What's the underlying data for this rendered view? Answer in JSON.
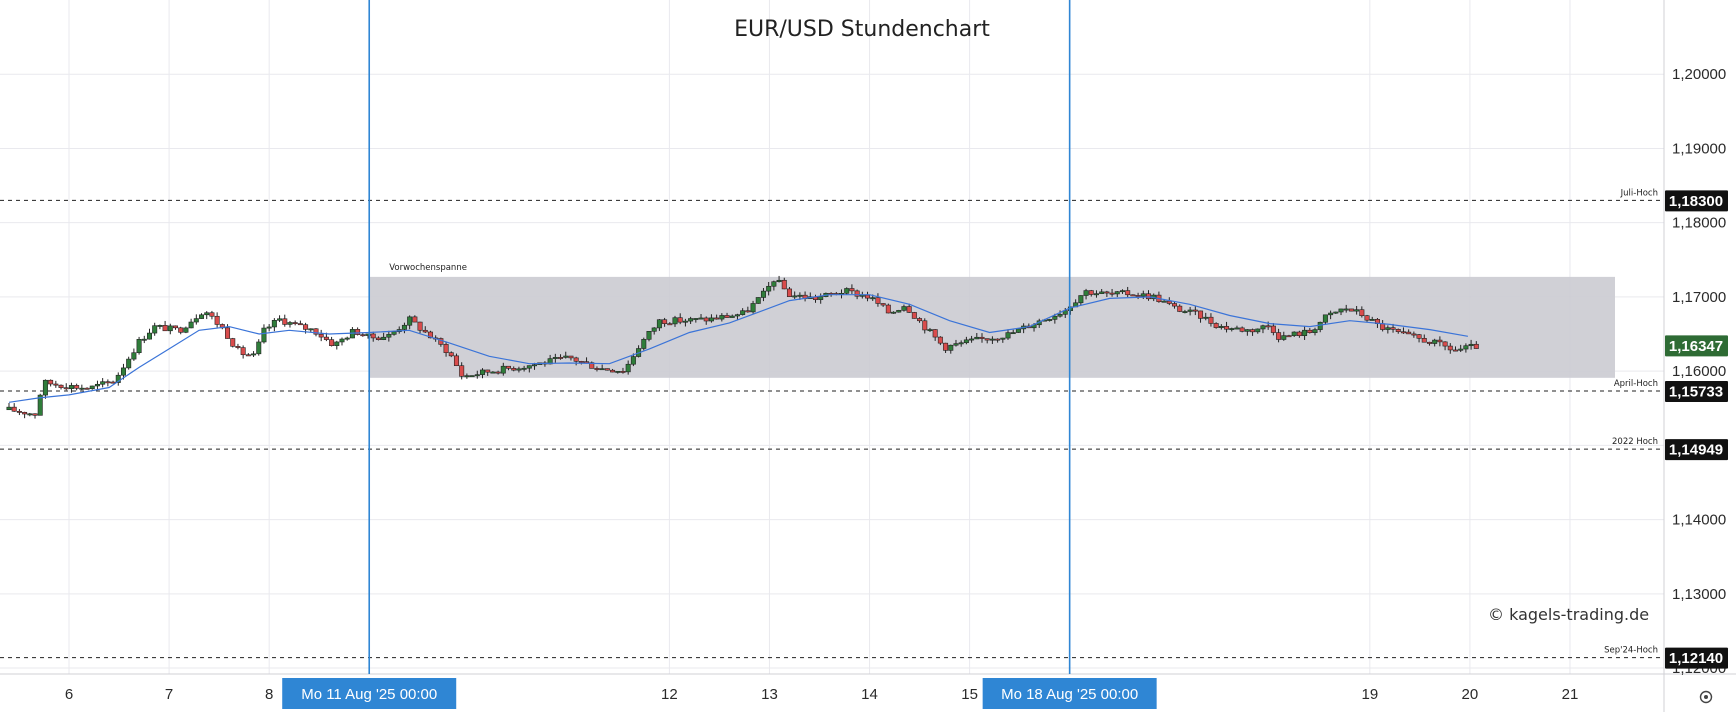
{
  "chart_data": {
    "type": "candlestick",
    "title": "EUR/USD Stundenchart",
    "instrument": "EUR/USD",
    "timeframe": "1h",
    "ylim": [
      1.1192,
      1.21
    ],
    "xlim": [
      5.4,
      21.7
    ],
    "y_ticks": [
      {
        "value": 1.2,
        "label": "1,20000"
      },
      {
        "value": 1.19,
        "label": "1,19000"
      },
      {
        "value": 1.18,
        "label": "1,18000"
      },
      {
        "value": 1.17,
        "label": "1,17000"
      },
      {
        "value": 1.16,
        "label": "1,16000"
      },
      {
        "value": 1.15,
        "label": "1,15000"
      },
      {
        "value": 1.14,
        "label": "1,14000"
      },
      {
        "value": 1.13,
        "label": "1,13000"
      },
      {
        "value": 1.12,
        "label": "1,12000"
      }
    ],
    "x_ticks": [
      {
        "value": 6,
        "label": "6"
      },
      {
        "value": 7,
        "label": "7"
      },
      {
        "value": 8,
        "label": "8"
      },
      {
        "value": 12,
        "label": "12"
      },
      {
        "value": 13,
        "label": "13"
      },
      {
        "value": 14,
        "label": "14"
      },
      {
        "value": 15,
        "label": "15"
      },
      {
        "value": 19,
        "label": "19"
      },
      {
        "value": 20,
        "label": "20"
      },
      {
        "value": 21,
        "label": "21"
      }
    ],
    "x_grid": [
      6,
      7,
      8,
      9,
      12,
      13,
      14,
      15,
      16,
      19,
      20,
      21
    ],
    "x_markers": [
      {
        "value": 9,
        "label": "Mo 11 Aug '25   00:00"
      },
      {
        "value": 16,
        "label": "Mo 18 Aug '25   00:00"
      }
    ],
    "range_box": {
      "label": "Vorwochenspanne",
      "x_from": 9,
      "x_to": 21.45,
      "y_low": 1.1591,
      "y_high": 1.1727
    },
    "levels": [
      {
        "value": 1.183,
        "price": "1,18300",
        "name": "Juli-Hoch"
      },
      {
        "value": 1.15733,
        "price": "1,15733",
        "name": "April-Hoch"
      },
      {
        "value": 1.14949,
        "price": "1,14949",
        "name": "2022 Hoch"
      },
      {
        "value": 1.1214,
        "price": "1,12140",
        "name": "Sep'24-Hoch"
      }
    ],
    "last_price": {
      "value": 1.16347,
      "label": "1,16347"
    },
    "candle_path": [
      {
        "x": 5.4,
        "y": 1.1548
      },
      {
        "x": 5.68,
        "y": 1.1542
      },
      {
        "x": 5.73,
        "y": 1.1585
      },
      {
        "x": 6.0,
        "y": 1.158
      },
      {
        "x": 6.2,
        "y": 1.1577
      },
      {
        "x": 6.45,
        "y": 1.1587
      },
      {
        "x": 6.7,
        "y": 1.164
      },
      {
        "x": 6.85,
        "y": 1.166
      },
      {
        "x": 7.1,
        "y": 1.1655
      },
      {
        "x": 7.35,
        "y": 1.1683
      },
      {
        "x": 7.55,
        "y": 1.1655
      },
      {
        "x": 7.7,
        "y": 1.1625
      },
      {
        "x": 7.85,
        "y": 1.162
      },
      {
        "x": 7.95,
        "y": 1.1655
      },
      {
        "x": 8.1,
        "y": 1.167
      },
      {
        "x": 8.3,
        "y": 1.166
      },
      {
        "x": 8.45,
        "y": 1.1655
      },
      {
        "x": 8.65,
        "y": 1.1635
      },
      {
        "x": 8.85,
        "y": 1.1655
      },
      {
        "x": 9.0,
        "y": 1.1645
      },
      {
        "x": 9.2,
        "y": 1.1648
      },
      {
        "x": 9.4,
        "y": 1.167
      },
      {
        "x": 9.6,
        "y": 1.1648
      },
      {
        "x": 9.8,
        "y": 1.1625
      },
      {
        "x": 9.93,
        "y": 1.1593
      },
      {
        "x": 10.2,
        "y": 1.16
      },
      {
        "x": 10.6,
        "y": 1.1608
      },
      {
        "x": 11.0,
        "y": 1.1618
      },
      {
        "x": 11.3,
        "y": 1.1604
      },
      {
        "x": 11.55,
        "y": 1.1601
      },
      {
        "x": 11.7,
        "y": 1.1635
      },
      {
        "x": 11.9,
        "y": 1.1668
      },
      {
        "x": 12.1,
        "y": 1.1668
      },
      {
        "x": 12.4,
        "y": 1.167
      },
      {
        "x": 12.75,
        "y": 1.1678
      },
      {
        "x": 12.95,
        "y": 1.1705
      },
      {
        "x": 13.05,
        "y": 1.1725
      },
      {
        "x": 13.2,
        "y": 1.1703
      },
      {
        "x": 13.45,
        "y": 1.1698
      },
      {
        "x": 13.75,
        "y": 1.1708
      },
      {
        "x": 14.0,
        "y": 1.17
      },
      {
        "x": 14.2,
        "y": 1.1678
      },
      {
        "x": 14.35,
        "y": 1.169
      },
      {
        "x": 14.55,
        "y": 1.166
      },
      {
        "x": 14.75,
        "y": 1.1632
      },
      {
        "x": 15.0,
        "y": 1.164
      },
      {
        "x": 15.4,
        "y": 1.165
      },
      {
        "x": 15.7,
        "y": 1.1668
      },
      {
        "x": 15.95,
        "y": 1.1682
      },
      {
        "x": 16.15,
        "y": 1.1708
      },
      {
        "x": 16.4,
        "y": 1.1703
      },
      {
        "x": 16.6,
        "y": 1.1705
      },
      {
        "x": 16.85,
        "y": 1.17
      },
      {
        "x": 17.05,
        "y": 1.1685
      },
      {
        "x": 17.3,
        "y": 1.1675
      },
      {
        "x": 17.5,
        "y": 1.166
      },
      {
        "x": 17.8,
        "y": 1.1655
      },
      {
        "x": 18.0,
        "y": 1.1662
      },
      {
        "x": 18.1,
        "y": 1.1645
      },
      {
        "x": 18.25,
        "y": 1.165
      },
      {
        "x": 18.4,
        "y": 1.1653
      },
      {
        "x": 18.55,
        "y": 1.1672
      },
      {
        "x": 18.75,
        "y": 1.1685
      },
      {
        "x": 18.9,
        "y": 1.1678
      },
      {
        "x": 19.1,
        "y": 1.166
      },
      {
        "x": 19.35,
        "y": 1.1648
      },
      {
        "x": 19.6,
        "y": 1.164
      },
      {
        "x": 19.85,
        "y": 1.1628
      },
      {
        "x": 20.1,
        "y": 1.1634
      }
    ],
    "moving_average": [
      {
        "x": 5.4,
        "y": 1.1558
      },
      {
        "x": 5.7,
        "y": 1.1564
      },
      {
        "x": 6.0,
        "y": 1.1568
      },
      {
        "x": 6.4,
        "y": 1.1578
      },
      {
        "x": 6.7,
        "y": 1.1605
      },
      {
        "x": 7.0,
        "y": 1.163
      },
      {
        "x": 7.3,
        "y": 1.1655
      },
      {
        "x": 7.6,
        "y": 1.166
      },
      {
        "x": 7.9,
        "y": 1.165
      },
      {
        "x": 8.2,
        "y": 1.1655
      },
      {
        "x": 8.6,
        "y": 1.165
      },
      {
        "x": 9.0,
        "y": 1.1652
      },
      {
        "x": 9.4,
        "y": 1.1655
      },
      {
        "x": 9.8,
        "y": 1.1638
      },
      {
        "x": 10.2,
        "y": 1.162
      },
      {
        "x": 10.6,
        "y": 1.161
      },
      {
        "x": 11.0,
        "y": 1.1611
      },
      {
        "x": 11.4,
        "y": 1.161
      },
      {
        "x": 11.8,
        "y": 1.163
      },
      {
        "x": 12.2,
        "y": 1.1652
      },
      {
        "x": 12.6,
        "y": 1.1665
      },
      {
        "x": 12.9,
        "y": 1.168
      },
      {
        "x": 13.2,
        "y": 1.1695
      },
      {
        "x": 13.6,
        "y": 1.1703
      },
      {
        "x": 14.0,
        "y": 1.1703
      },
      {
        "x": 14.4,
        "y": 1.169
      },
      {
        "x": 14.8,
        "y": 1.1668
      },
      {
        "x": 15.2,
        "y": 1.1652
      },
      {
        "x": 15.6,
        "y": 1.166
      },
      {
        "x": 16.0,
        "y": 1.1685
      },
      {
        "x": 16.4,
        "y": 1.1698
      },
      {
        "x": 16.8,
        "y": 1.17
      },
      {
        "x": 17.2,
        "y": 1.169
      },
      {
        "x": 17.6,
        "y": 1.1675
      },
      {
        "x": 18.0,
        "y": 1.1664
      },
      {
        "x": 18.4,
        "y": 1.166
      },
      {
        "x": 18.8,
        "y": 1.1668
      },
      {
        "x": 19.2,
        "y": 1.1663
      },
      {
        "x": 19.6,
        "y": 1.1656
      },
      {
        "x": 19.98,
        "y": 1.1647
      }
    ],
    "up_color": "#2f7d3a",
    "down_color": "#d94c4c",
    "ma_color": "#3b74d8",
    "marker_color": "#2f86d4",
    "range_color": "#cbcbd1",
    "last_price_color": "#2e6b34",
    "badge_color": "#111111"
  },
  "watermark": "© kagels-trading.de"
}
